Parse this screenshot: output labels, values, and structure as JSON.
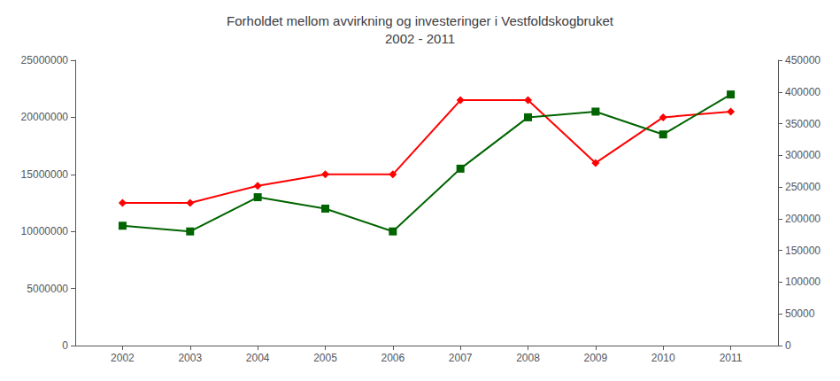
{
  "chart_data": {
    "type": "line",
    "title": "Forholdet mellom avvirkning og investeringer i Vestfoldskogbruket\n2002 - 2011",
    "x": [
      2002,
      2003,
      2004,
      2005,
      2006,
      2007,
      2008,
      2009,
      2010,
      2011
    ],
    "series": [
      {
        "color": "#FF0000",
        "marker": "diamond",
        "line_style": "solid",
        "values": [
          12500000,
          12500000,
          14000000,
          15000000,
          15000000,
          21500000,
          21500000,
          16000000,
          20000000,
          20500000
        ]
      },
      {
        "color": "#006400",
        "marker": "square",
        "line_style": "solid",
        "values": [
          10500000,
          10000000,
          13000000,
          12000000,
          10000000,
          15500000,
          20000000,
          20500000,
          18500000,
          22000000
        ]
      }
    ],
    "xlim": [
      2001.3,
      2011.7
    ],
    "xticks": [
      2002,
      2003,
      2004,
      2005,
      2006,
      2007,
      2008,
      2009,
      2010,
      2011
    ],
    "ylim": [
      0,
      25000000
    ],
    "yticks": [
      0,
      5000000,
      10000000,
      15000000,
      20000000,
      25000000
    ],
    "y2lim": [
      0,
      450000
    ],
    "y2ticks": [
      0,
      50000,
      100000,
      150000,
      200000,
      250000,
      300000,
      350000,
      400000,
      450000
    ],
    "grid": false
  }
}
